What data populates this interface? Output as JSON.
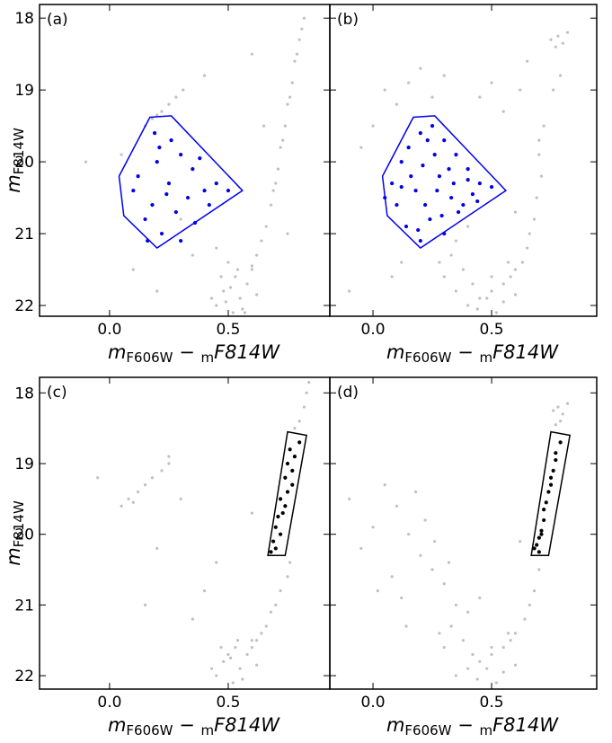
{
  "chart_data": [
    {
      "type": "scatter",
      "label": "(a)",
      "xlabel": [
        "m",
        "F606W",
        " − ",
        "m",
        "F814W"
      ],
      "ylabel": [
        "m",
        "F814W"
      ],
      "xlim": [
        -0.295,
        0.928
      ],
      "ylim": [
        22.15,
        17.81
      ],
      "xticks": [
        {
          "value": 0,
          "label": "0.0"
        },
        {
          "value": 0.5,
          "label": "0.5"
        }
      ],
      "yticks": [
        18,
        19,
        20,
        21,
        22
      ],
      "show_ytick_labels": true,
      "series": [
        {
          "color": "#c0c0c0",
          "x": [
            0.82,
            0.81,
            0.8,
            0.79,
            0.78,
            0.77,
            0.76,
            0.75,
            0.74,
            0.73,
            0.72,
            0.71,
            0.7,
            0.69,
            0.68,
            0.66,
            0.64,
            0.62,
            0.6,
            0.5,
            0.53,
            0.48,
            0.55,
            0.45,
            0.58,
            0.52,
            0.6,
            0.47,
            0.56,
            0.43,
            0.62,
            0.51,
            0.54,
            0.49,
            0.57,
            0.15,
            0.18,
            0.22,
            0.25,
            0.28,
            0.31,
            0.2,
            0.3,
            0.1,
            0.65,
            0.4,
            0.2,
            0.75,
            0.35,
            -0.1,
            0.6,
            0.45,
            0.05
          ],
          "y": [
            18.0,
            18.15,
            18.3,
            18.5,
            18.6,
            18.9,
            19.1,
            19.2,
            19.5,
            19.7,
            19.8,
            20.1,
            20.3,
            20.4,
            20.6,
            20.9,
            21.1,
            21.3,
            21.45,
            21.4,
            21.6,
            21.8,
            21.9,
            22.0,
            21.7,
            22.1,
            21.5,
            21.6,
            22.05,
            21.9,
            21.85,
            21.75,
            21.5,
            21.95,
            22.1,
            19.5,
            19.4,
            19.3,
            19.2,
            19.1,
            19.0,
            19.35,
            20.8,
            21.5,
            19.5,
            18.8,
            21.8,
            21.0,
            21.3,
            20.0,
            18.5,
            21.2,
            19.9
          ]
        },
        {
          "color": "#0000ee",
          "x": [
            0.12,
            0.2,
            0.25,
            0.3,
            0.35,
            0.4,
            0.18,
            0.28,
            0.22,
            0.15,
            0.33,
            0.42,
            0.26,
            0.19,
            0.38,
            0.45,
            0.1,
            0.3,
            0.24,
            0.36,
            0.5,
            0.16,
            0.21
          ],
          "y": [
            20.2,
            20.0,
            20.3,
            19.9,
            20.1,
            20.4,
            20.6,
            20.7,
            21.0,
            20.8,
            20.5,
            20.6,
            19.7,
            19.6,
            19.95,
            20.3,
            20.4,
            21.1,
            20.45,
            20.85,
            20.4,
            21.1,
            19.8
          ]
        }
      ],
      "region": {
        "color": "#0000ee",
        "x": [
          0.04,
          0.17,
          0.26,
          0.56,
          0.2,
          0.06
        ],
        "y": [
          20.2,
          19.38,
          19.36,
          20.4,
          21.2,
          20.75
        ]
      }
    },
    {
      "type": "scatter",
      "label": "(b)",
      "xlabel": [
        "m",
        "F606W",
        " − ",
        "m",
        "F814W"
      ],
      "xlim": [
        -0.182,
        0.943
      ],
      "ylim": [
        22.15,
        17.81
      ],
      "xticks": [
        {
          "value": 0,
          "label": "0.0"
        },
        {
          "value": 0.5,
          "label": "0.5"
        }
      ],
      "yticks": [
        18,
        19,
        20,
        21,
        22
      ],
      "show_ytick_labels": false,
      "series": [
        {
          "color": "#c0c0c0",
          "x": [
            0.75,
            0.78,
            0.8,
            0.77,
            0.82,
            0.76,
            0.79,
            0.72,
            0.7,
            0.71,
            0.69,
            0.68,
            0.66,
            0.65,
            0.63,
            0.6,
            0.58,
            0.55,
            0.5,
            0.45,
            0.4,
            0.35,
            0.3,
            0.52,
            0.48,
            0.42,
            0.38,
            0.55,
            0.6,
            0.33,
            0.28,
            0.44,
            0.5,
            0.57,
            0.05,
            0.1,
            0.0,
            -0.05,
            0.15,
            0.2,
            0.25,
            0.3,
            0.12,
            0.35,
            0.4,
            0.08,
            0.62,
            0.65,
            0.55,
            0.45,
            0.5,
            -0.1,
            0.7,
            0.6
          ],
          "y": [
            18.3,
            18.25,
            18.35,
            18.4,
            18.2,
            19.0,
            18.8,
            19.5,
            19.9,
            20.2,
            20.5,
            20.8,
            21.0,
            21.2,
            21.4,
            21.5,
            21.6,
            21.7,
            21.8,
            21.9,
            22.0,
            21.8,
            21.6,
            22.1,
            21.9,
            21.7,
            21.5,
            21.95,
            21.85,
            21.3,
            21.4,
            22.05,
            21.6,
            21.4,
            19.0,
            19.2,
            19.5,
            19.8,
            18.9,
            18.7,
            19.1,
            18.8,
            21.4,
            21.1,
            20.9,
            21.6,
            19.0,
            18.6,
            19.3,
            19.1,
            18.9,
            21.8,
            19.7,
            20.7
          ]
        },
        {
          "color": "#0000ee",
          "x": [
            0.08,
            0.12,
            0.15,
            0.2,
            0.25,
            0.3,
            0.35,
            0.4,
            0.45,
            0.5,
            0.18,
            0.22,
            0.28,
            0.33,
            0.38,
            0.1,
            0.14,
            0.24,
            0.3,
            0.36,
            0.42,
            0.2,
            0.16,
            0.26,
            0.32,
            0.05,
            0.44,
            0.27,
            0.19,
            0.23,
            0.34,
            0.12,
            0.29,
            0.4,
            0.21
          ],
          "y": [
            20.3,
            20.0,
            19.8,
            19.6,
            19.5,
            19.7,
            19.9,
            20.1,
            20.3,
            20.35,
            20.4,
            20.6,
            20.2,
            20.5,
            20.6,
            20.6,
            20.9,
            20.8,
            21.0,
            20.7,
            20.45,
            21.1,
            20.2,
            19.9,
            20.1,
            20.5,
            20.55,
            20.4,
            20.95,
            19.7,
            20.3,
            20.35,
            20.75,
            20.25,
            20.05
          ]
        }
      ],
      "region": {
        "color": "#0000ee",
        "x": [
          0.04,
          0.17,
          0.26,
          0.56,
          0.2,
          0.06
        ],
        "y": [
          20.2,
          19.38,
          19.36,
          20.4,
          21.2,
          20.75
        ]
      }
    },
    {
      "type": "scatter",
      "label": "(c)",
      "xlabel": [
        "m",
        "F606W",
        " − ",
        "m",
        "F814W"
      ],
      "ylabel": [
        "m",
        "F814W"
      ],
      "xlim": [
        -0.295,
        0.928
      ],
      "ylim": [
        22.19,
        17.78
      ],
      "xticks": [
        {
          "value": 0,
          "label": "0.0"
        },
        {
          "value": 0.5,
          "label": "0.5"
        }
      ],
      "yticks": [
        18,
        19,
        20,
        21,
        22
      ],
      "show_ytick_labels": true,
      "series": [
        {
          "color": "#c0c0c0",
          "x": [
            0.84,
            0.83,
            0.82,
            0.8,
            0.78,
            0.76,
            0.75,
            0.72,
            0.7,
            0.68,
            0.66,
            0.64,
            0.62,
            0.6,
            0.5,
            0.53,
            0.48,
            0.55,
            0.45,
            0.58,
            0.52,
            0.6,
            0.47,
            0.56,
            0.43,
            0.62,
            0.51,
            0.54,
            0.05,
            0.08,
            0.12,
            0.15,
            0.18,
            0.22,
            0.25,
            0.1,
            0.3,
            0.2,
            0.4,
            0.35,
            0.6,
            -0.05,
            0.25,
            0.45,
            0.15
          ],
          "y": [
            17.85,
            18.0,
            18.2,
            18.4,
            18.5,
            20.4,
            20.6,
            20.8,
            21.0,
            21.1,
            21.3,
            21.4,
            21.5,
            21.6,
            21.7,
            21.6,
            21.8,
            21.9,
            22.0,
            21.7,
            22.1,
            21.5,
            21.6,
            22.05,
            21.9,
            21.85,
            21.75,
            21.5,
            19.6,
            19.5,
            19.4,
            19.3,
            19.2,
            19.1,
            19.0,
            19.55,
            19.5,
            20.2,
            20.8,
            21.2,
            19.7,
            19.2,
            18.9,
            20.4,
            21.0
          ]
        },
        {
          "color": "#000000",
          "x": [
            0.8,
            0.78,
            0.77,
            0.74,
            0.75,
            0.72,
            0.74,
            0.71,
            0.7,
            0.72,
            0.69,
            0.7,
            0.76,
            0.77,
            0.75,
            0.73,
            0.68
          ],
          "y": [
            18.7,
            18.9,
            19.1,
            19.2,
            19.4,
            19.5,
            19.6,
            19.75,
            19.9,
            20.0,
            20.1,
            20.2,
            18.8,
            19.3,
            19.0,
            19.7,
            20.25
          ]
        }
      ],
      "region": {
        "color": "#000000",
        "x": [
          0.667,
          0.75,
          0.83,
          0.74
        ],
        "y": [
          20.3,
          18.55,
          18.6,
          20.3
        ]
      }
    },
    {
      "type": "scatter",
      "label": "(d)",
      "xlabel": [
        "m",
        "F606W",
        " − ",
        "m",
        "F814W"
      ],
      "xlim": [
        -0.182,
        0.943
      ],
      "ylim": [
        22.19,
        17.78
      ],
      "xticks": [
        {
          "value": 0,
          "label": "0.0"
        },
        {
          "value": 0.5,
          "label": "0.5"
        }
      ],
      "yticks": [
        18,
        19,
        20,
        21,
        22
      ],
      "show_ytick_labels": false,
      "series": [
        {
          "color": "#c0c0c0",
          "x": [
            0.76,
            0.78,
            0.8,
            0.79,
            0.82,
            0.77,
            0.7,
            0.68,
            0.66,
            0.64,
            0.6,
            0.58,
            0.55,
            0.5,
            0.45,
            0.4,
            0.35,
            0.3,
            0.52,
            0.48,
            0.42,
            0.38,
            0.55,
            0.6,
            0.33,
            0.28,
            0.44,
            0.5,
            0.57,
            0.05,
            0.1,
            0.0,
            -0.05,
            0.15,
            0.2,
            0.25,
            0.3,
            0.12,
            0.35,
            0.4,
            0.08,
            0.18,
            0.22,
            0.02,
            0.26,
            0.14,
            -0.1,
            0.32,
            0.45,
            0.62
          ],
          "y": [
            18.25,
            18.2,
            18.3,
            18.4,
            18.15,
            18.45,
            20.5,
            20.8,
            21.0,
            21.2,
            21.4,
            21.5,
            21.6,
            21.7,
            21.8,
            21.9,
            22.0,
            21.6,
            22.1,
            21.9,
            21.7,
            21.5,
            21.95,
            21.85,
            21.3,
            21.4,
            22.05,
            21.6,
            21.4,
            19.3,
            19.6,
            19.9,
            20.2,
            20.0,
            20.3,
            20.5,
            20.7,
            20.9,
            21.0,
            21.1,
            20.6,
            19.4,
            19.8,
            20.8,
            20.1,
            21.3,
            19.5,
            20.4,
            20.9,
            20.1
          ]
        },
        {
          "color": "#000000",
          "x": [
            0.79,
            0.77,
            0.76,
            0.75,
            0.74,
            0.73,
            0.72,
            0.71,
            0.7,
            0.69,
            0.7,
            0.77,
            0.75,
            0.72,
            0.68,
            0.71
          ],
          "y": [
            18.7,
            18.85,
            19.1,
            19.3,
            19.4,
            19.55,
            19.8,
            19.95,
            20.05,
            20.15,
            20.25,
            18.95,
            19.2,
            19.65,
            20.2,
            20.0
          ]
        }
      ],
      "region": {
        "color": "#000000",
        "x": [
          0.667,
          0.75,
          0.83,
          0.74
        ],
        "y": [
          20.3,
          18.55,
          18.6,
          20.3
        ]
      }
    }
  ]
}
